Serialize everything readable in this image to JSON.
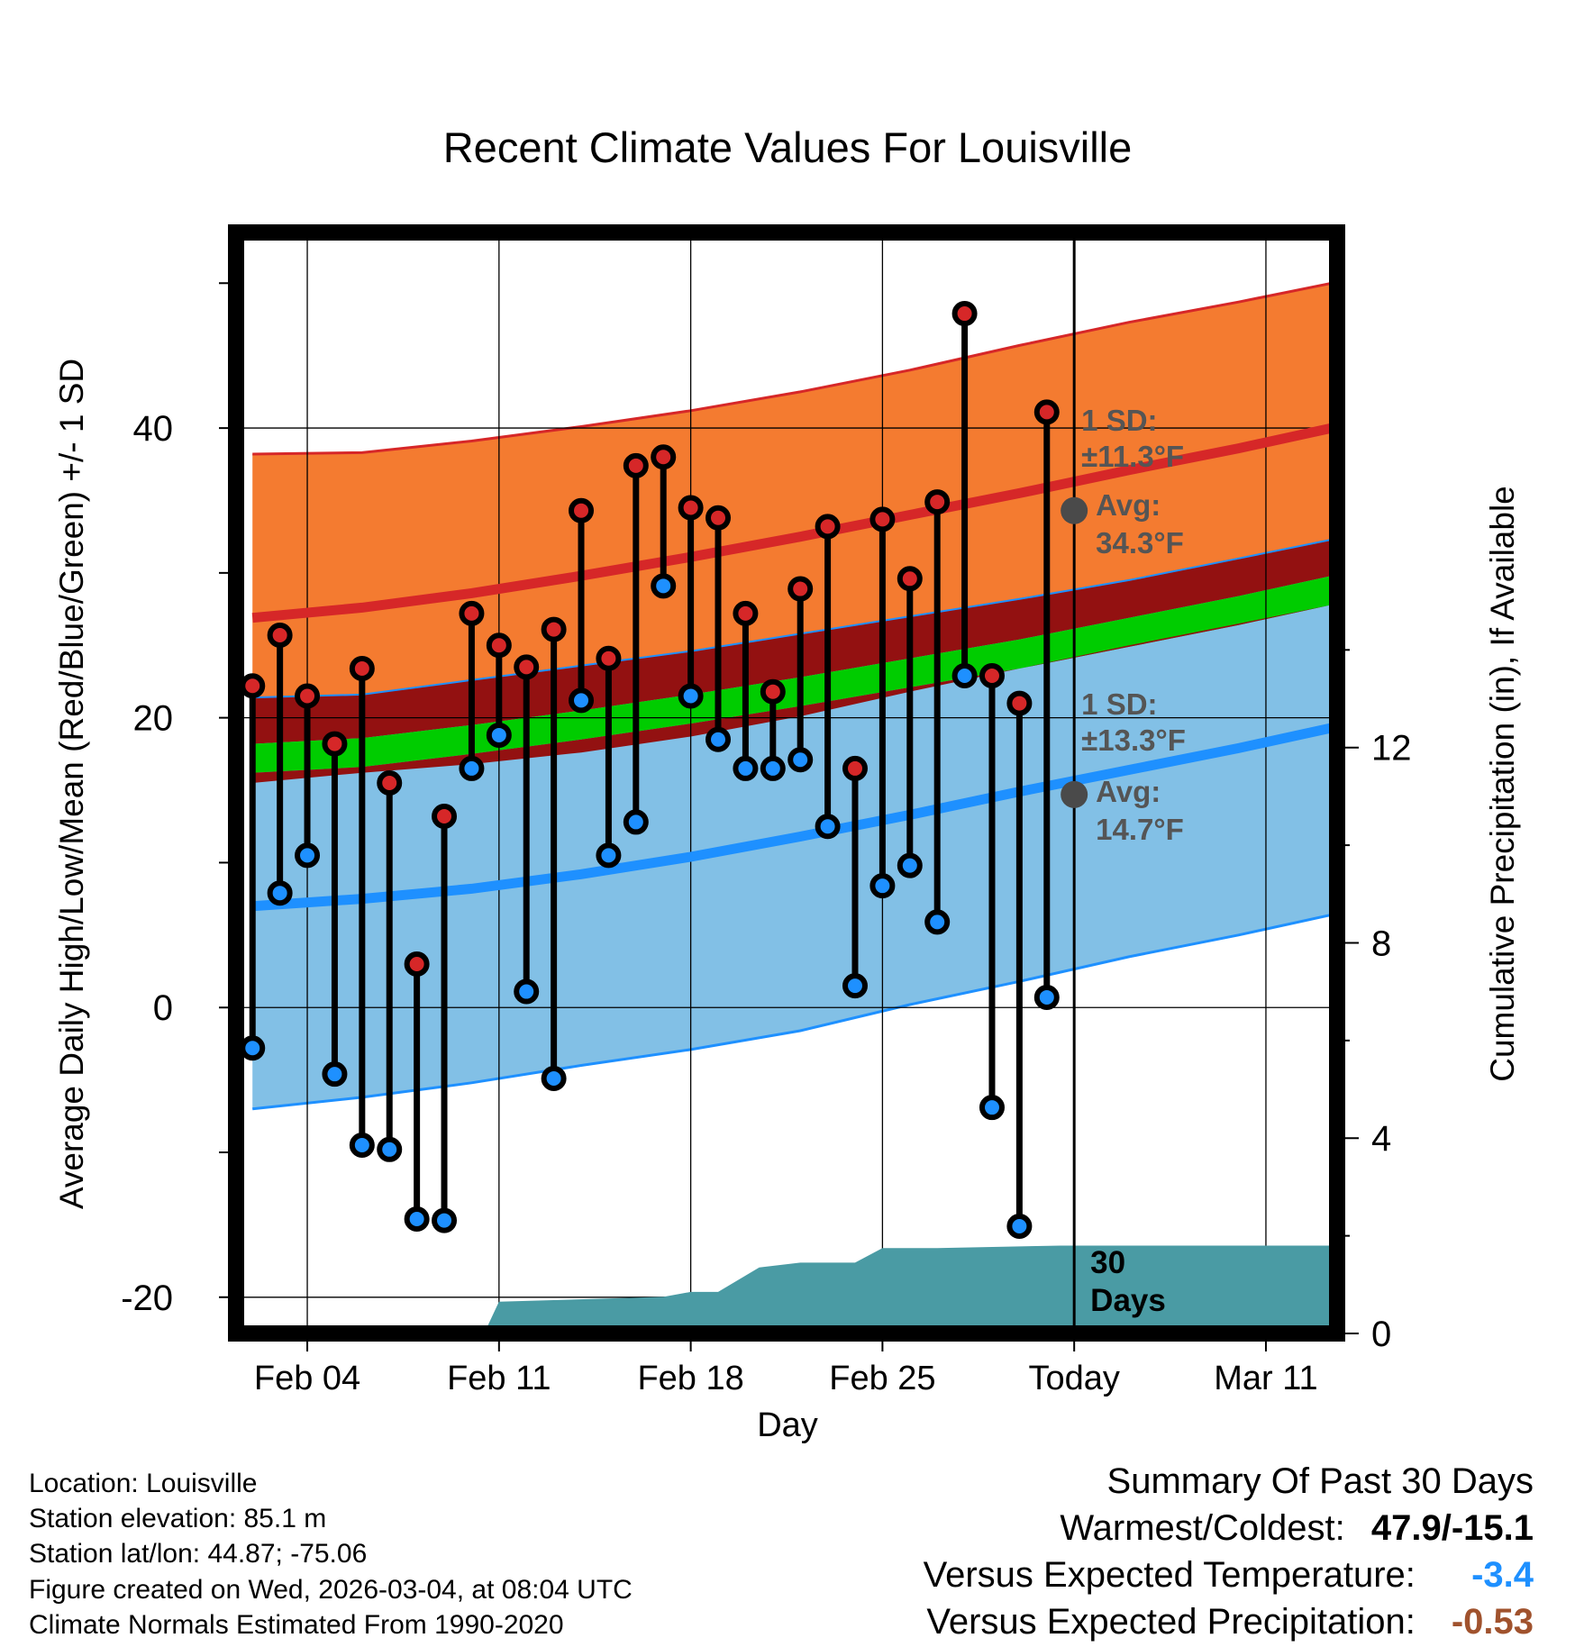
{
  "page": {
    "title": "Recent Climate Values For Louisville",
    "xlabel": "Day",
    "ylabel_left": "Average Daily High/Low/Mean (Red/Blue/Green) +/- 1 SD",
    "ylabel_right": "Cumulative Precipitation (in), If Available"
  },
  "info": {
    "location": "Location: Louisville",
    "elevation": "Station elevation: 85.1 m",
    "latlon": "Station lat/lon: 44.87; -75.06",
    "created": "Figure created on Wed, 2026-03-04, at 08:04 UTC",
    "normals": "Climate Normals Estimated From 1990-2020"
  },
  "summary": {
    "heading": "Summary Of Past 30 Days",
    "warmest_label": "Warmest/Coldest:",
    "warmest_value": "47.9/-15.1",
    "temp_label": "Versus Expected Temperature:",
    "temp_value": "-3.4",
    "temp_color": "#1e90ff",
    "precip_label": "Versus Expected Precipitation:",
    "precip_value": "-0.53",
    "precip_color": "#a0522d"
  },
  "annotations": {
    "high_sd_line1": "1 SD:",
    "high_sd_line2": "±11.3°F",
    "high_avg_line1": "Avg:",
    "high_avg_line2": "34.3°F",
    "low_sd_line1": "1 SD:",
    "low_sd_line2": "±13.3°F",
    "low_avg_line1": "Avg:",
    "low_avg_line2": "14.7°F",
    "days_line1": "30",
    "days_line2": "Days"
  },
  "chart_data": {
    "type": "line",
    "title": "Recent Climate Values For Louisville",
    "xlabel": "Day",
    "ylabel": "Average Daily High/Low/Mean (Red/Blue/Green) +/- 1 SD",
    "y2label": "Cumulative Precipitation (in), If Available",
    "xlim": [
      -0.6,
      39.6
    ],
    "ylim": [
      -22.5,
      53.5
    ],
    "y2lim": [
      0,
      22.55
    ],
    "x_ticks": [
      {
        "x": 2,
        "label": "Feb 04"
      },
      {
        "x": 9,
        "label": "Feb 11"
      },
      {
        "x": 16,
        "label": "Feb 18"
      },
      {
        "x": 23,
        "label": "Feb 25"
      },
      {
        "x": 30,
        "label": "Today"
      },
      {
        "x": 37,
        "label": "Mar 11"
      }
    ],
    "y_ticks": [
      -20,
      0,
      20,
      40
    ],
    "y2_ticks": [
      0,
      4,
      8,
      12
    ],
    "today_x": 30,
    "observed": {
      "x": [
        0,
        1,
        2,
        3,
        4,
        5,
        6,
        7,
        8,
        9,
        10,
        11,
        12,
        13,
        14,
        15,
        16,
        17,
        18,
        19,
        20,
        21,
        22,
        23,
        24,
        25,
        26,
        27,
        28,
        29
      ],
      "high": [
        22.2,
        25.7,
        21.5,
        18.2,
        23.4,
        15.5,
        3.0,
        13.2,
        27.2,
        25.0,
        23.5,
        26.1,
        34.3,
        24.1,
        37.4,
        38.0,
        34.5,
        33.8,
        27.2,
        21.8,
        28.9,
        33.2,
        16.5,
        33.7,
        29.6,
        34.9,
        47.9,
        22.9,
        21.0,
        41.1
      ],
      "low": [
        -2.8,
        7.9,
        10.5,
        -4.6,
        -9.5,
        -9.8,
        -14.6,
        -14.7,
        16.5,
        18.8,
        1.1,
        -4.9,
        21.2,
        10.5,
        12.8,
        29.1,
        21.5,
        18.5,
        16.5,
        16.5,
        17.1,
        12.5,
        1.5,
        8.4,
        9.8,
        5.9,
        22.9,
        -6.9,
        -15.1,
        0.7
      ]
    },
    "normals": {
      "x": [
        0,
        4,
        8,
        12,
        16,
        20,
        24,
        28,
        32,
        36,
        39.4
      ],
      "high_avg": [
        26.9,
        27.6,
        28.6,
        29.8,
        31.1,
        32.5,
        34.0,
        35.5,
        37.1,
        38.6,
        40.0
      ],
      "high_upper": [
        38.2,
        38.3,
        39.1,
        40.1,
        41.2,
        42.5,
        44.0,
        45.7,
        47.3,
        48.7,
        50.0
      ],
      "high_lower": [
        21.4,
        21.6,
        22.6,
        23.6,
        24.6,
        25.8,
        27.0,
        28.2,
        29.5,
        31.0,
        32.3
      ],
      "mean_avg": [
        17.2,
        17.6,
        18.5,
        19.5,
        20.6,
        21.8,
        23.1,
        24.4,
        25.9,
        27.4,
        28.8
      ],
      "low_avg": [
        7.0,
        7.5,
        8.2,
        9.2,
        10.4,
        11.8,
        13.3,
        14.9,
        16.4,
        17.9,
        19.3
      ],
      "low_upper": [
        15.5,
        16.2,
        16.8,
        17.6,
        18.7,
        20.1,
        21.8,
        23.4,
        25.0,
        26.5,
        27.8
      ],
      "low_lower": [
        -7.0,
        -6.2,
        -5.2,
        -4.0,
        -2.9,
        -1.6,
        0.2,
        1.8,
        3.5,
        5.0,
        6.4
      ]
    },
    "precip_cumulative": {
      "x": [
        -0.6,
        6.5,
        7,
        8.5,
        9,
        15,
        16,
        17,
        18.5,
        20,
        22,
        23,
        25,
        29.5,
        39.6
      ],
      "y": [
        0,
        0,
        0.05,
        0.05,
        0.65,
        0.75,
        0.85,
        0.85,
        1.35,
        1.45,
        1.45,
        1.75,
        1.75,
        1.8,
        1.8
      ]
    },
    "colors": {
      "high_band": "#f47b30",
      "high_line": "#d62728",
      "low_band": "#82c0e6",
      "low_line": "#1e90ff",
      "mean_band": "#00cc00",
      "overlap_band": "#931111",
      "precip": "#4a9ba4",
      "high_marker": "#d62728",
      "low_marker": "#1e90ff",
      "avg_marker": "#4a4a4a",
      "annotation_text": "#555555"
    }
  }
}
